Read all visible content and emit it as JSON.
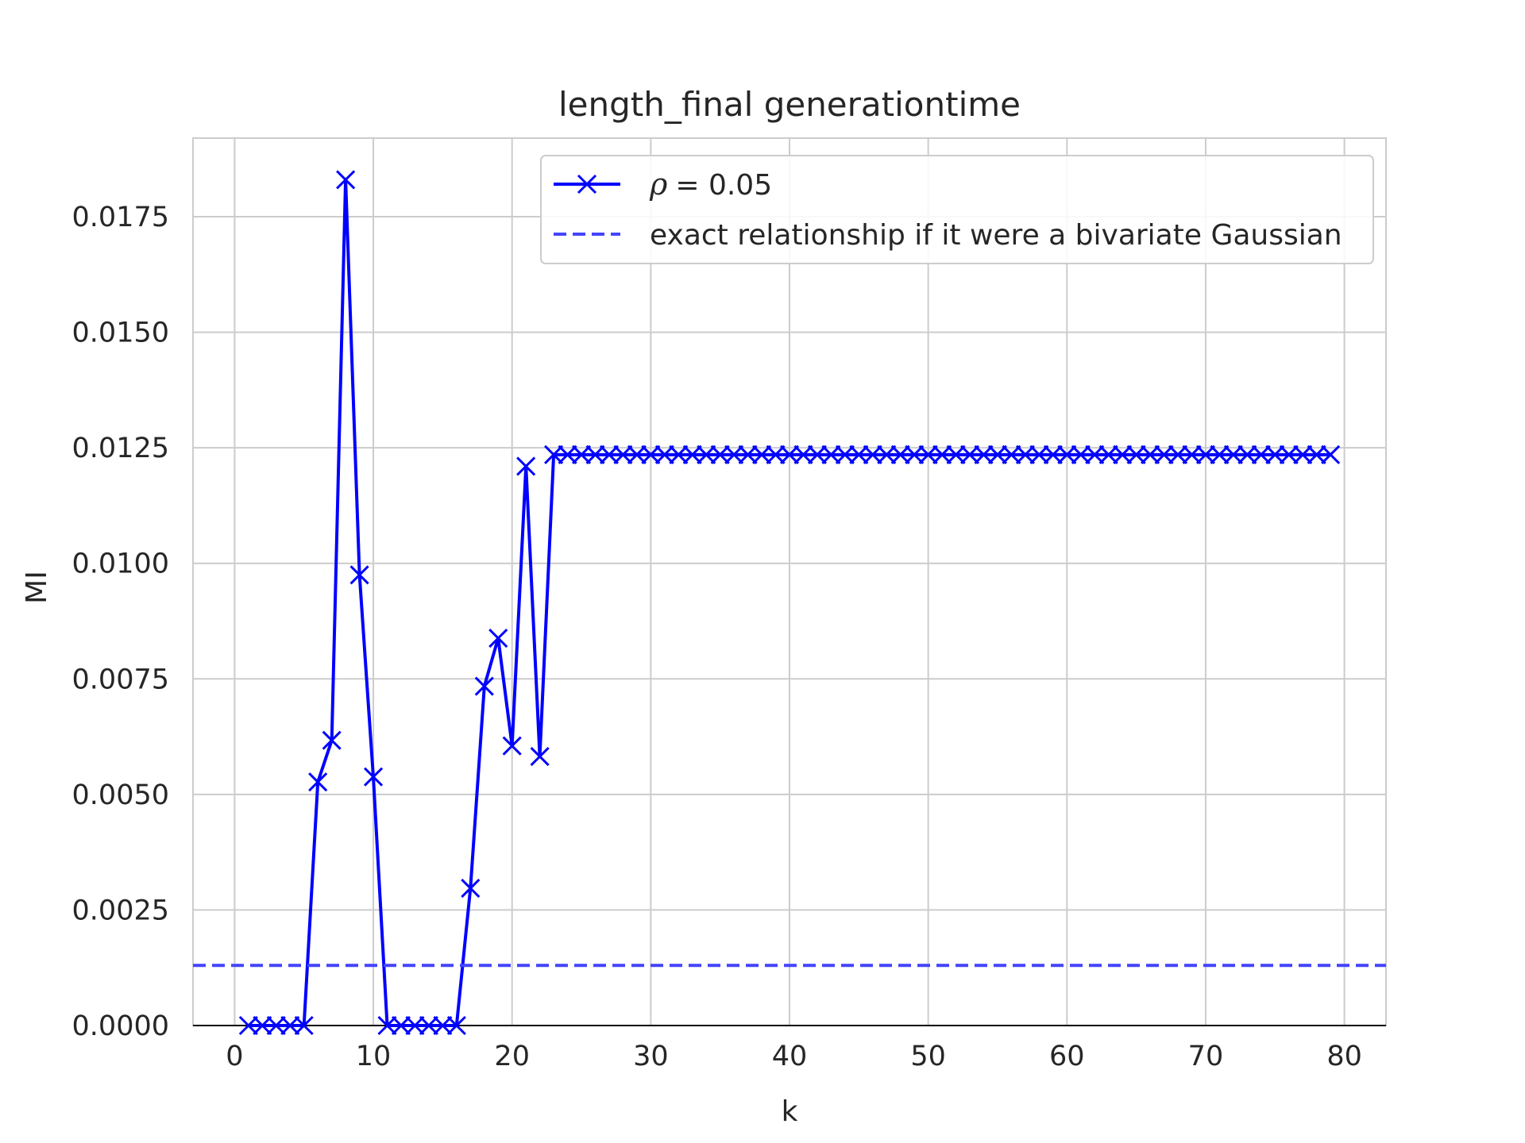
{
  "chart_data": {
    "type": "line",
    "title": "length_final generationtime",
    "xlabel": "k",
    "ylabel": "MI",
    "xlim": [
      -3,
      83
    ],
    "ylim": [
      0,
      0.0192
    ],
    "xticks": [
      0,
      10,
      20,
      30,
      40,
      50,
      60,
      70,
      80
    ],
    "xtick_labels": [
      "0",
      "10",
      "20",
      "30",
      "40",
      "50",
      "60",
      "70",
      "80"
    ],
    "yticks": [
      0,
      0.0025,
      0.005,
      0.0075,
      0.01,
      0.0125,
      0.015,
      0.0175
    ],
    "ytick_labels": [
      "0.0000",
      "0.0025",
      "0.0050",
      "0.0075",
      "0.0100",
      "0.0125",
      "0.0150",
      "0.0175"
    ],
    "grid": true,
    "legend_position": "top-right",
    "series": [
      {
        "name": "ρ = 0.05",
        "style": "solid line with x markers",
        "color": "#0000ff",
        "x": [
          1,
          2,
          3,
          4,
          5,
          6,
          7,
          8,
          9,
          10,
          11,
          12,
          13,
          14,
          15,
          16,
          17,
          18,
          19,
          20,
          21,
          22,
          23,
          24,
          25,
          26,
          27,
          28,
          29,
          30,
          31,
          32,
          33,
          34,
          35,
          36,
          37,
          38,
          39,
          40,
          41,
          42,
          43,
          44,
          45,
          46,
          47,
          48,
          49,
          50,
          51,
          52,
          53,
          54,
          55,
          56,
          57,
          58,
          59,
          60,
          61,
          62,
          63,
          64,
          65,
          66,
          67,
          68,
          69,
          70,
          71,
          72,
          73,
          74,
          75,
          76,
          77,
          78,
          79
        ],
        "y": [
          0,
          0,
          0,
          0,
          0,
          0.00527,
          0.00617,
          0.0183,
          0.00975,
          0.00538,
          0,
          0,
          0,
          0,
          0,
          0,
          0.00297,
          0.00734,
          0.00838,
          0.00605,
          0.0121,
          0.00582,
          0.01235,
          0.01235,
          0.01235,
          0.01235,
          0.01235,
          0.01235,
          0.01235,
          0.01235,
          0.01235,
          0.01235,
          0.01235,
          0.01235,
          0.01235,
          0.01235,
          0.01235,
          0.01235,
          0.01235,
          0.01235,
          0.01235,
          0.01235,
          0.01235,
          0.01235,
          0.01235,
          0.01235,
          0.01235,
          0.01235,
          0.01235,
          0.01235,
          0.01235,
          0.01235,
          0.01235,
          0.01235,
          0.01235,
          0.01235,
          0.01235,
          0.01235,
          0.01235,
          0.01235,
          0.01235,
          0.01235,
          0.01235,
          0.01235,
          0.01235,
          0.01235,
          0.01235,
          0.01235,
          0.01235,
          0.01235,
          0.01235,
          0.01235,
          0.01235,
          0.01235,
          0.01235,
          0.01235,
          0.01235,
          0.01235,
          0.01235
        ]
      },
      {
        "name": "exact relationship if it were a bivariate Gaussian",
        "style": "dashed horizontal line",
        "color": "#4444ff",
        "y": 0.0013
      }
    ],
    "legend": {
      "rho_symbol": "ρ",
      "rho_value": "= 0.05",
      "gaussian_label": "exact relationship if it were a bivariate Gaussian"
    }
  }
}
